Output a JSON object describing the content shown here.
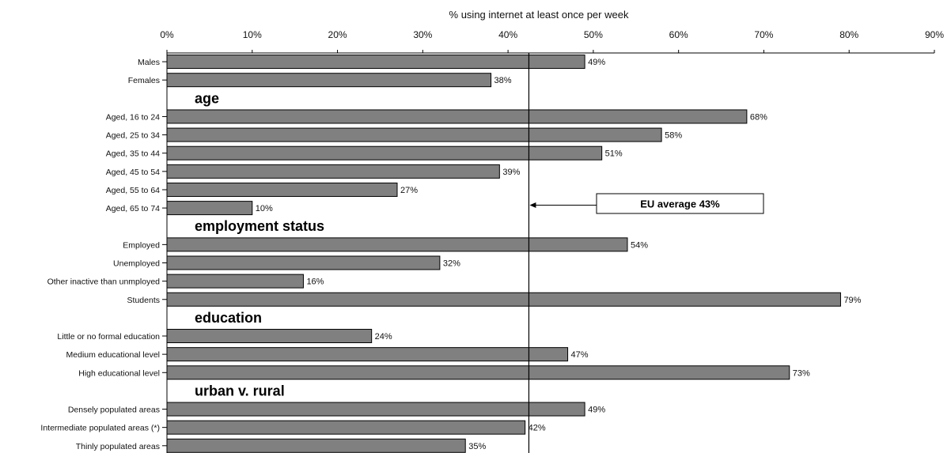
{
  "chart_data": {
    "type": "bar",
    "orientation": "horizontal",
    "xlabel": "% using internet at least once per week",
    "xlim": [
      0,
      90
    ],
    "xticks": [
      "0%",
      "10%",
      "20%",
      "30%",
      "40%",
      "50%",
      "60%",
      "70%",
      "80%",
      "90%"
    ],
    "grid": false,
    "legend": "none",
    "bar_color": "#808080",
    "bar_edge_color": "#000000",
    "reference_line": {
      "value": 43,
      "label": "EU average 43%"
    },
    "rows": [
      {
        "kind": "bar",
        "category": "Males",
        "value": 49,
        "label": "49%"
      },
      {
        "kind": "bar",
        "category": "Females",
        "value": 38,
        "label": "38%"
      },
      {
        "kind": "group",
        "title": "age"
      },
      {
        "kind": "bar",
        "category": "Aged, 16 to 24",
        "value": 68,
        "label": "68%"
      },
      {
        "kind": "bar",
        "category": "Aged, 25 to 34",
        "value": 58,
        "label": "58%"
      },
      {
        "kind": "bar",
        "category": "Aged, 35 to 44",
        "value": 51,
        "label": "51%"
      },
      {
        "kind": "bar",
        "category": "Aged, 45 to 54",
        "value": 39,
        "label": "39%"
      },
      {
        "kind": "bar",
        "category": "Aged, 55 to 64",
        "value": 27,
        "label": "27%"
      },
      {
        "kind": "bar",
        "category": "Aged, 65 to 74",
        "value": 10,
        "label": "10%"
      },
      {
        "kind": "group",
        "title": "employment status"
      },
      {
        "kind": "bar",
        "category": "Employed",
        "value": 54,
        "label": "54%"
      },
      {
        "kind": "bar",
        "category": "Unemployed",
        "value": 32,
        "label": "32%"
      },
      {
        "kind": "bar",
        "category": "Other inactive than unmployed",
        "value": 16,
        "label": "16%"
      },
      {
        "kind": "bar",
        "category": "Students",
        "value": 79,
        "label": "79%"
      },
      {
        "kind": "group",
        "title": "education"
      },
      {
        "kind": "bar",
        "category": "Little or no formal education",
        "value": 24,
        "label": "24%"
      },
      {
        "kind": "bar",
        "category": "Medium educational level",
        "value": 47,
        "label": "47%"
      },
      {
        "kind": "bar",
        "category": "High educational level",
        "value": 73,
        "label": "73%"
      },
      {
        "kind": "group",
        "title": "urban v. rural"
      },
      {
        "kind": "bar",
        "category": "Densely populated areas",
        "value": 49,
        "label": "49%"
      },
      {
        "kind": "bar",
        "category": "Intermediate populated areas (*)",
        "value": 42,
        "label": "42%"
      },
      {
        "kind": "bar",
        "category": "Thinly populated areas",
        "value": 35,
        "label": "35%"
      }
    ]
  }
}
